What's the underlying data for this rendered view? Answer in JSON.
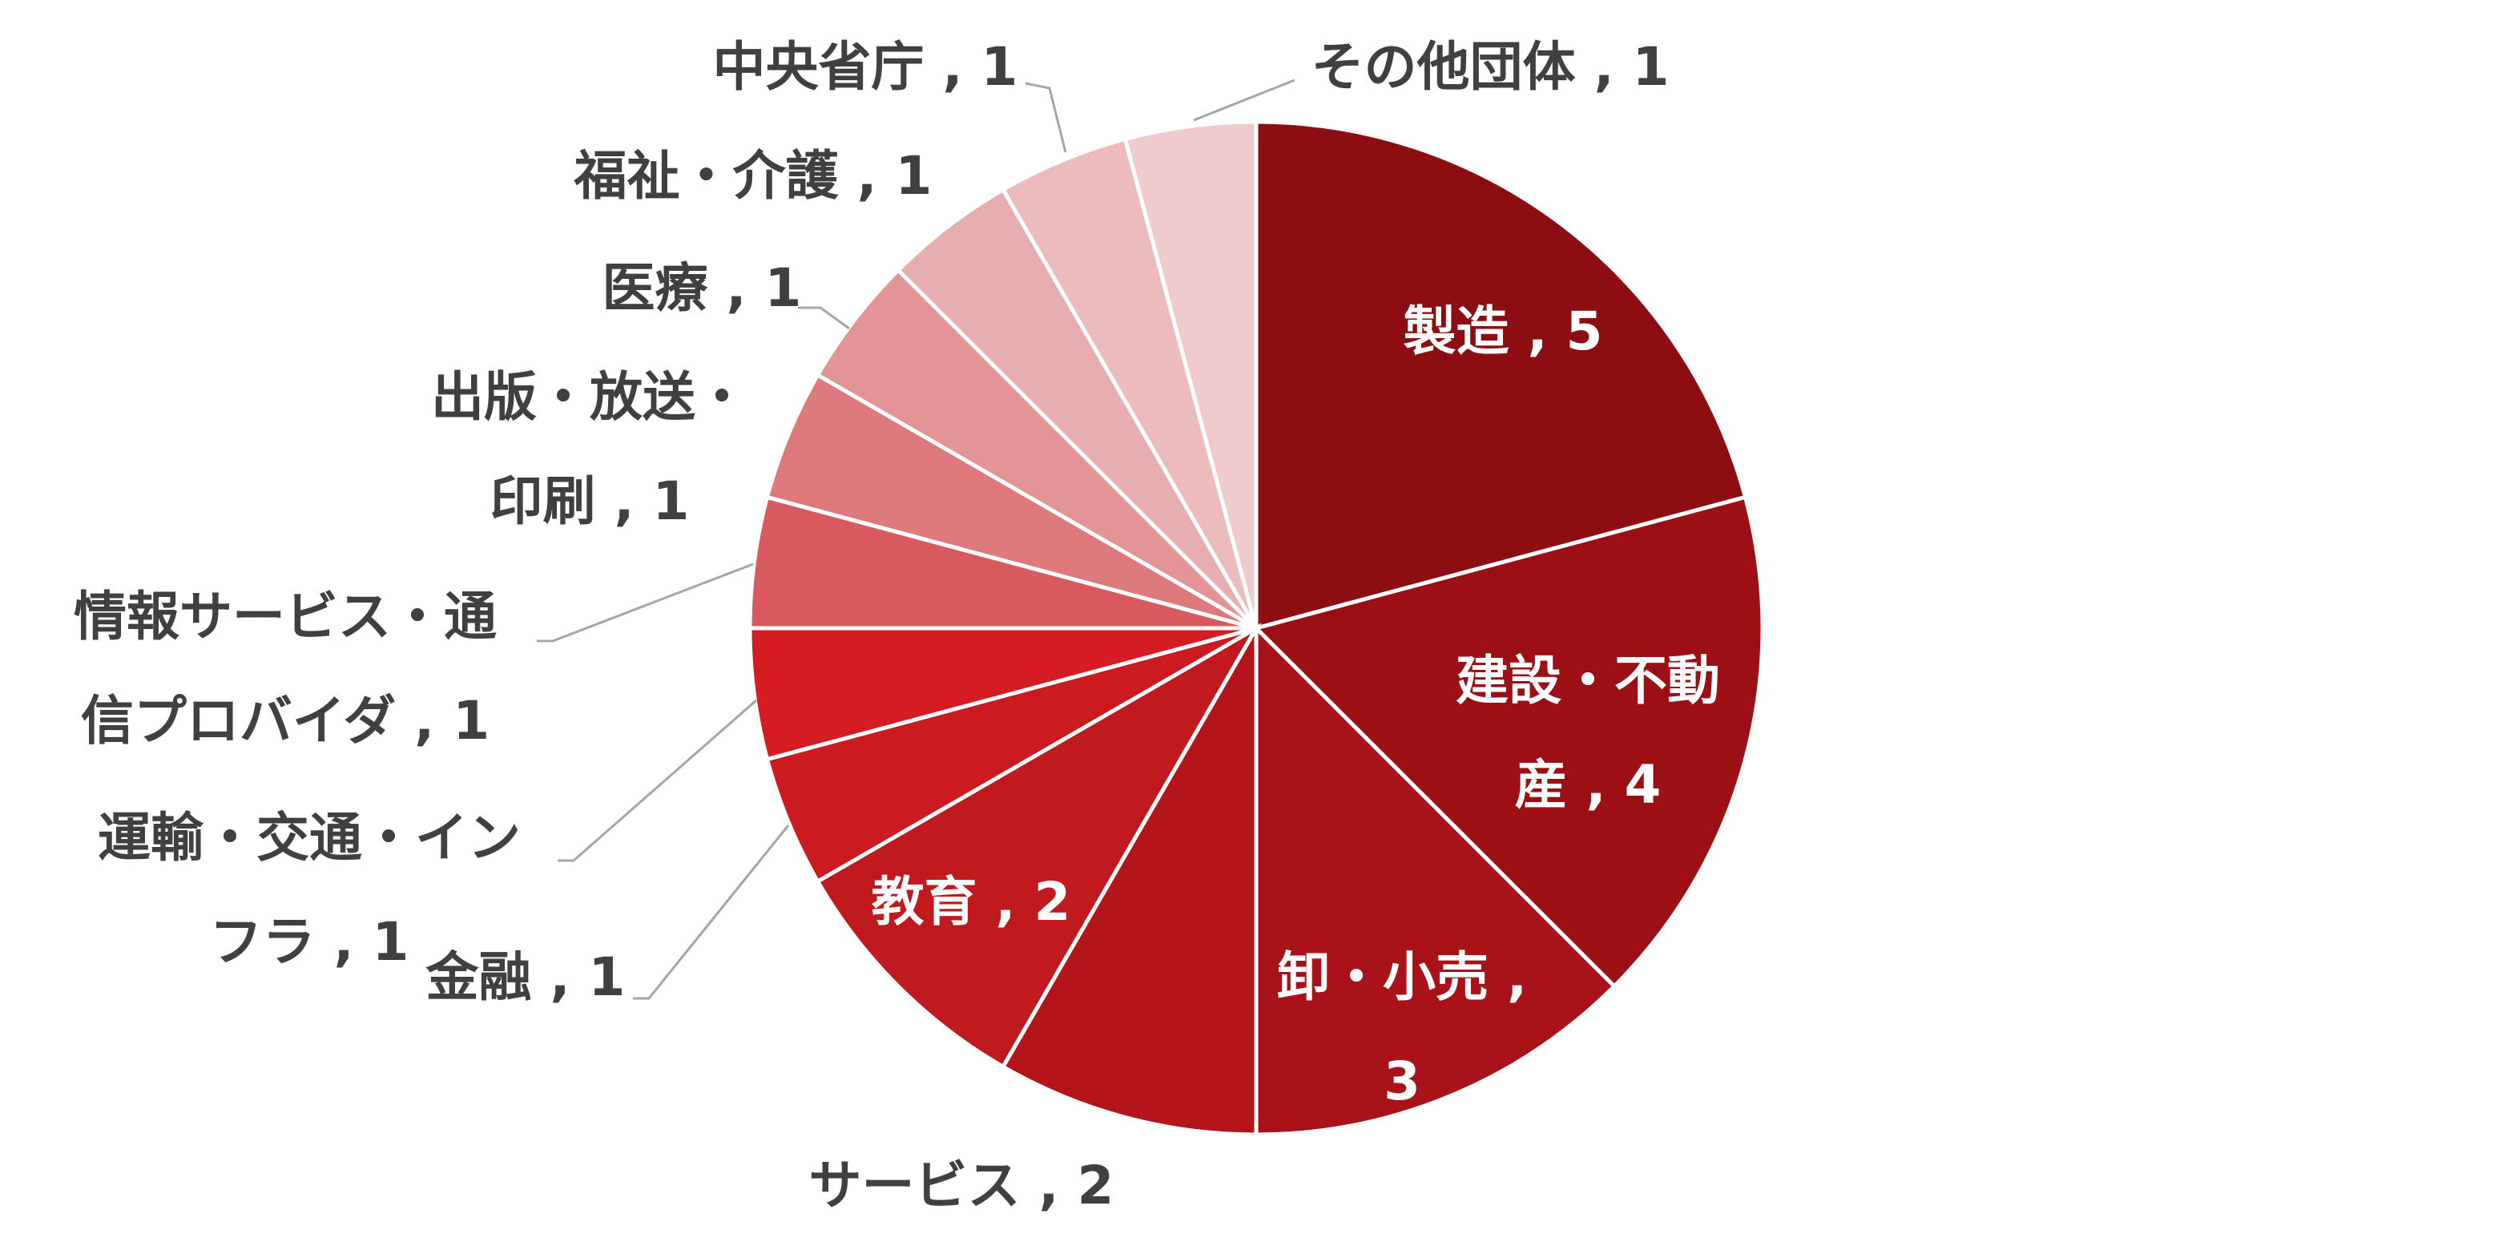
{
  "chart_data": {
    "type": "pie",
    "categories": [
      "製造",
      "建設・不動産",
      "卸・小売",
      "サービス",
      "教育",
      "金融",
      "運輸・交通・インフラ",
      "情報サービス・通信プロバイダ",
      "出版・放送・印刷",
      "医療",
      "福祉・介護",
      "中央省庁",
      "その他団体"
    ],
    "values": [
      5,
      4,
      3,
      2,
      2,
      1,
      1,
      1,
      1,
      1,
      1,
      1,
      1
    ],
    "separator": " , ",
    "colors": [
      "#8c0d12",
      "#9c0f15",
      "#a81218",
      "#b4151a",
      "#c0191e",
      "#cc1b20",
      "#d61c23",
      "#d95a5e",
      "#de7a7c",
      "#e39596",
      "#e8adae",
      "#ecbcbd",
      "#f0cbcc"
    ]
  }
}
